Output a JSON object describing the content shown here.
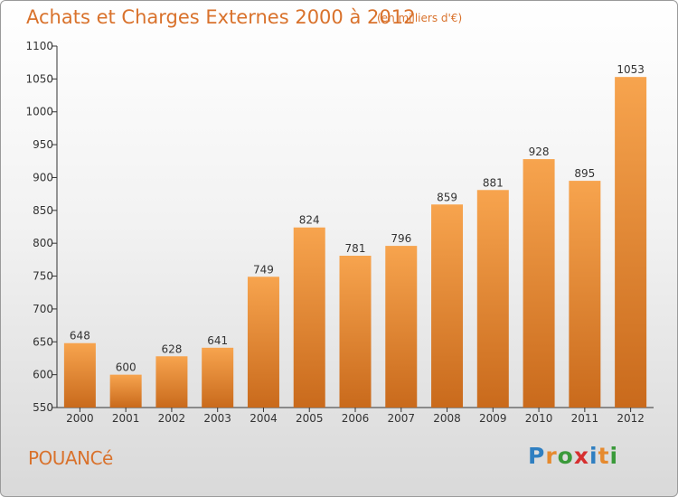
{
  "header": {
    "title": "Achats et Charges Externes 2000 à 2012",
    "subtitle": "(en milliers d'€)"
  },
  "footer": {
    "commune": "POUANCé",
    "logo_letters": [
      "P",
      "r",
      "o",
      "x",
      "i",
      "t",
      "i"
    ],
    "logo_colors": [
      "#2f7fc1",
      "#e68a2e",
      "#3a9a3a",
      "#d62f2f",
      "#2f7fc1",
      "#e68a2e",
      "#3a9a3a"
    ]
  },
  "colors": {
    "bar_top": "#f7a44e",
    "bar_bottom": "#c96a1c",
    "axis": "#333333",
    "grid": "#d0d0d0"
  },
  "chart_data": {
    "type": "bar",
    "title": "Achats et Charges Externes 2000 à 2012",
    "subtitle": "(en milliers d'€)",
    "categories": [
      "2000",
      "2001",
      "2002",
      "2003",
      "2004",
      "2005",
      "2006",
      "2007",
      "2008",
      "2009",
      "2010",
      "2011",
      "2012"
    ],
    "values": [
      648,
      600,
      628,
      641,
      749,
      824,
      781,
      796,
      859,
      881,
      928,
      895,
      1053
    ],
    "ylim": [
      550,
      1100
    ],
    "yticks": [
      550,
      600,
      650,
      700,
      750,
      800,
      850,
      900,
      950,
      1000,
      1050,
      1100
    ],
    "grid": false,
    "data_labels": true
  }
}
